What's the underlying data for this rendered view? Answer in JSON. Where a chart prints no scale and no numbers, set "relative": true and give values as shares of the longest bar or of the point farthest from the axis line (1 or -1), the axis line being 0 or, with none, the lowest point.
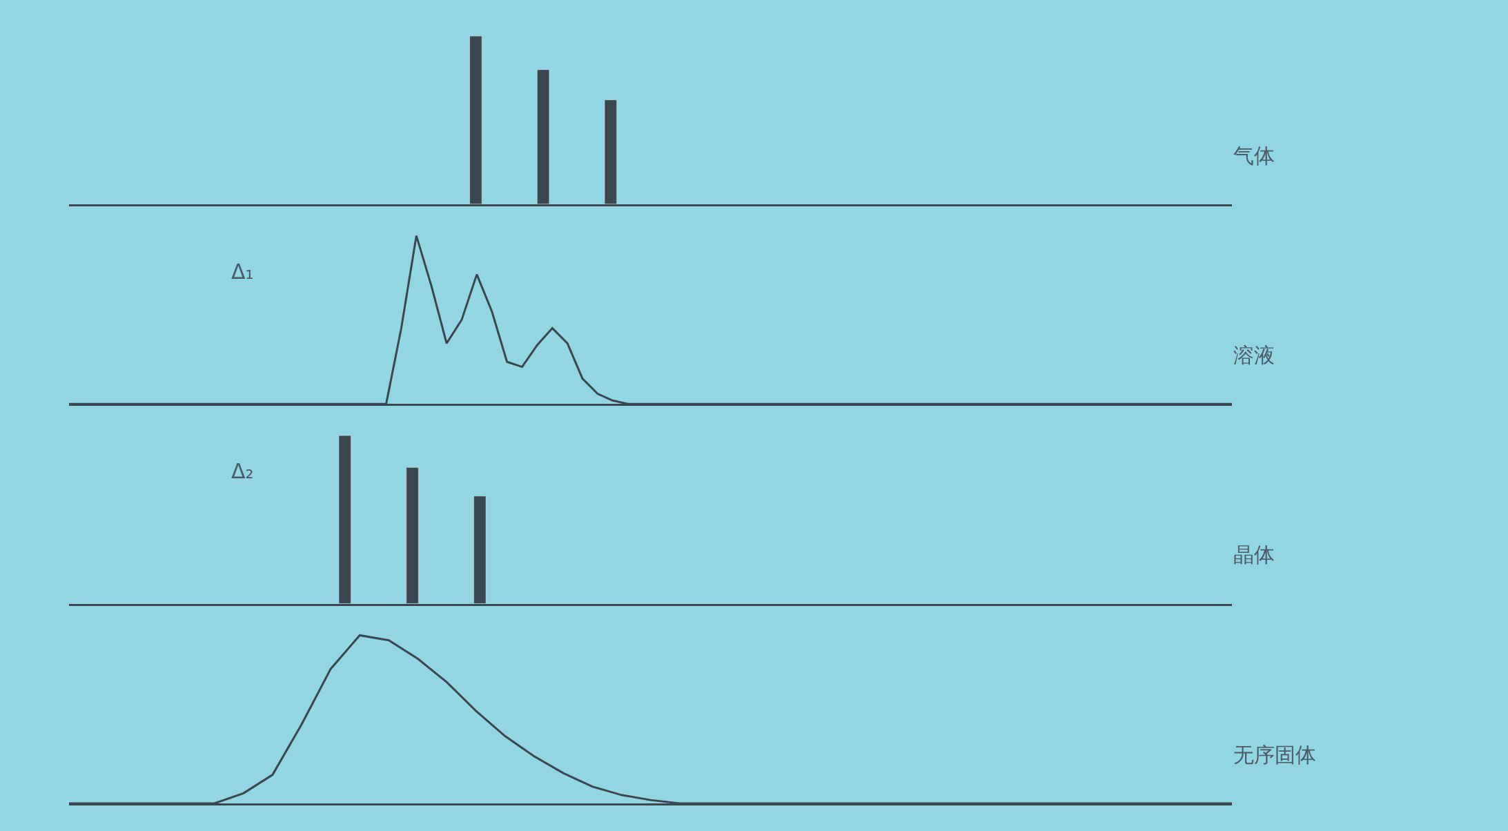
{
  "chart_data": [
    {
      "type": "bar",
      "relative": true,
      "categories": [
        null,
        null,
        null
      ],
      "values": [
        1,
        0.8,
        0.62
      ],
      "color": "#3a4650",
      "annotations": [
        "气体"
      ]
    },
    {
      "type": "line",
      "relative": true,
      "categories": [
        null,
        null,
        null,
        null,
        null,
        null,
        null,
        null,
        null,
        null,
        null,
        null,
        null,
        null,
        null,
        null,
        null,
        null,
        null,
        null,
        null,
        null,
        null,
        null,
        null,
        null,
        null,
        null,
        null,
        null,
        null,
        null,
        null,
        null,
        null,
        null,
        null,
        null,
        null,
        null,
        null,
        null,
        null,
        null,
        null,
        null,
        null,
        null,
        null,
        null,
        null,
        null,
        null,
        null,
        null,
        null,
        null,
        null,
        null,
        null,
        null,
        null,
        null,
        null,
        null,
        null,
        null,
        null,
        null,
        null,
        null,
        null,
        null,
        null,
        null,
        null,
        null,
        null
      ],
      "values": [
        0,
        0,
        0,
        0,
        0,
        0,
        0,
        0,
        0,
        0,
        0,
        0,
        0,
        0,
        0,
        0,
        0,
        0,
        0,
        0,
        0,
        0,
        0.45,
        1,
        0.7,
        0.36,
        0.5,
        0.77,
        0.55,
        0.25,
        0.22,
        0.35,
        0.45,
        0.36,
        0.15,
        0.06,
        0.02,
        0,
        0,
        0,
        0,
        0,
        0,
        0,
        0,
        0,
        0,
        0,
        0,
        0,
        0,
        0,
        0,
        0,
        0,
        0,
        0,
        0,
        0,
        0,
        0,
        0,
        0,
        0,
        0,
        0,
        0,
        0,
        0,
        0,
        0,
        0,
        0,
        0,
        0,
        0,
        0,
        0
      ],
      "color": "#3a4650",
      "annotations": [
        "溶液",
        "Δ₁"
      ]
    },
    {
      "type": "bar",
      "relative": true,
      "categories": [
        null,
        null,
        null
      ],
      "values": [
        1,
        0.81,
        0.64
      ],
      "color": "#3a4650",
      "annotations": [
        "晶体",
        "Δ₂"
      ]
    },
    {
      "type": "line",
      "relative": true,
      "categories": [
        null,
        null,
        null,
        null,
        null,
        null,
        null,
        null,
        null,
        null,
        null,
        null,
        null,
        null,
        null,
        null,
        null,
        null,
        null,
        null,
        null,
        null,
        null,
        null,
        null,
        null,
        null,
        null,
        null,
        null,
        null,
        null,
        null,
        null,
        null,
        null,
        null,
        null,
        null,
        null,
        null
      ],
      "values": [
        0,
        0,
        0,
        0,
        0,
        0,
        0.06,
        0.17,
        0.47,
        0.8,
        1,
        0.97,
        0.86,
        0.72,
        0.55,
        0.4,
        0.28,
        0.18,
        0.1,
        0.05,
        0.02,
        0,
        0,
        0,
        0,
        0,
        0,
        0,
        0,
        0,
        0,
        0,
        0,
        0,
        0,
        0,
        0,
        0,
        0,
        0,
        0
      ],
      "color": "#3a4650",
      "annotations": [
        "无序固体"
      ]
    }
  ]
}
